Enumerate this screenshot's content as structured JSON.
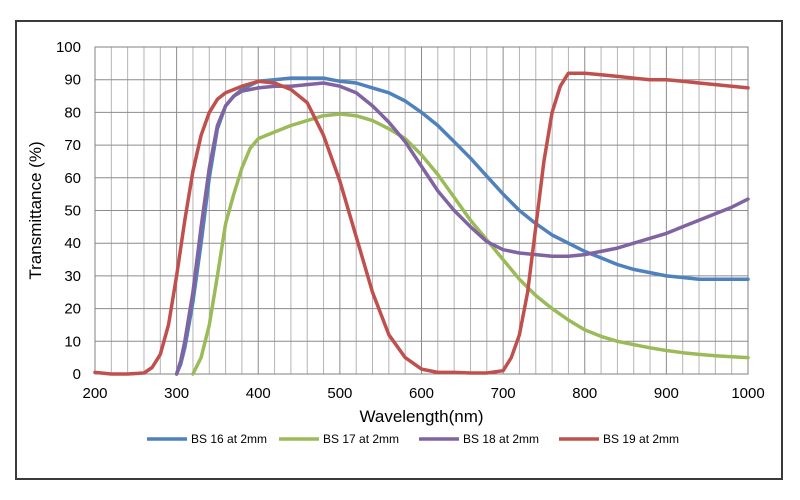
{
  "chart_data": {
    "type": "line",
    "title": "",
    "xlabel": "Wavelength(nm)",
    "ylabel": "Transmittance (%)",
    "xlim": [
      200,
      1000
    ],
    "ylim": [
      0,
      100
    ],
    "x_ticks": [
      200,
      300,
      400,
      500,
      600,
      700,
      800,
      900,
      1000
    ],
    "y_ticks": [
      0,
      10,
      20,
      30,
      40,
      50,
      60,
      70,
      80,
      90,
      100
    ],
    "x_minor_step": 20,
    "y_minor_step": 10,
    "grid": true,
    "legend_position": "bottom",
    "series": [
      {
        "name": "BS 16 at 2mm",
        "color": "#4F81BD",
        "points": [
          [
            300,
            0
          ],
          [
            305,
            3
          ],
          [
            310,
            8
          ],
          [
            315,
            15
          ],
          [
            320,
            22
          ],
          [
            330,
            40
          ],
          [
            340,
            60
          ],
          [
            350,
            75
          ],
          [
            360,
            82
          ],
          [
            370,
            85
          ],
          [
            380,
            87
          ],
          [
            400,
            89.5
          ],
          [
            420,
            90
          ],
          [
            440,
            90.5
          ],
          [
            460,
            90.5
          ],
          [
            480,
            90.5
          ],
          [
            500,
            89.5
          ],
          [
            520,
            89
          ],
          [
            540,
            87.5
          ],
          [
            560,
            86
          ],
          [
            580,
            83.5
          ],
          [
            600,
            80
          ],
          [
            620,
            76
          ],
          [
            640,
            71
          ],
          [
            660,
            66
          ],
          [
            680,
            60.5
          ],
          [
            700,
            55
          ],
          [
            720,
            50
          ],
          [
            740,
            46
          ],
          [
            760,
            42.5
          ],
          [
            780,
            40
          ],
          [
            800,
            37.5
          ],
          [
            820,
            35.5
          ],
          [
            840,
            33.5
          ],
          [
            860,
            32
          ],
          [
            880,
            31
          ],
          [
            900,
            30
          ],
          [
            920,
            29.5
          ],
          [
            940,
            29
          ],
          [
            960,
            29
          ],
          [
            980,
            29
          ],
          [
            1000,
            29
          ]
        ]
      },
      {
        "name": "BS 17 at 2mm",
        "color": "#9BBB59",
        "points": [
          [
            320,
            0
          ],
          [
            330,
            5
          ],
          [
            340,
            15
          ],
          [
            350,
            30
          ],
          [
            360,
            46
          ],
          [
            370,
            55
          ],
          [
            380,
            63
          ],
          [
            390,
            69
          ],
          [
            400,
            72
          ],
          [
            420,
            74
          ],
          [
            440,
            76
          ],
          [
            460,
            77.5
          ],
          [
            480,
            79
          ],
          [
            500,
            79.5
          ],
          [
            520,
            79
          ],
          [
            540,
            77.5
          ],
          [
            560,
            75
          ],
          [
            580,
            72
          ],
          [
            600,
            67
          ],
          [
            620,
            61
          ],
          [
            640,
            54
          ],
          [
            660,
            47
          ],
          [
            680,
            41
          ],
          [
            700,
            35
          ],
          [
            720,
            29
          ],
          [
            740,
            24
          ],
          [
            760,
            20
          ],
          [
            780,
            16.5
          ],
          [
            800,
            13.5
          ],
          [
            820,
            11.5
          ],
          [
            840,
            10
          ],
          [
            860,
            9
          ],
          [
            880,
            8
          ],
          [
            900,
            7.2
          ],
          [
            920,
            6.5
          ],
          [
            940,
            6
          ],
          [
            960,
            5.6
          ],
          [
            980,
            5.3
          ],
          [
            1000,
            5
          ]
        ]
      },
      {
        "name": "BS 18 at 2mm",
        "color": "#8064A2",
        "points": [
          [
            300,
            0
          ],
          [
            305,
            4
          ],
          [
            310,
            10
          ],
          [
            320,
            25
          ],
          [
            330,
            45
          ],
          [
            340,
            63
          ],
          [
            350,
            76
          ],
          [
            360,
            82
          ],
          [
            370,
            85
          ],
          [
            380,
            86.5
          ],
          [
            400,
            87.5
          ],
          [
            420,
            88
          ],
          [
            440,
            88
          ],
          [
            460,
            88.5
          ],
          [
            480,
            89
          ],
          [
            500,
            88
          ],
          [
            520,
            86
          ],
          [
            540,
            82
          ],
          [
            560,
            77
          ],
          [
            580,
            71
          ],
          [
            600,
            63.5
          ],
          [
            620,
            56
          ],
          [
            640,
            50
          ],
          [
            660,
            45
          ],
          [
            680,
            40.5
          ],
          [
            700,
            38
          ],
          [
            720,
            37
          ],
          [
            740,
            36.5
          ],
          [
            760,
            36
          ],
          [
            780,
            36
          ],
          [
            800,
            36.5
          ],
          [
            820,
            37.5
          ],
          [
            840,
            38.5
          ],
          [
            860,
            40
          ],
          [
            880,
            41.5
          ],
          [
            900,
            43
          ],
          [
            920,
            45
          ],
          [
            940,
            47
          ],
          [
            960,
            49
          ],
          [
            980,
            51
          ],
          [
            1000,
            53.5
          ]
        ]
      },
      {
        "name": "BS 19 at 2mm",
        "color": "#C0504D",
        "points": [
          [
            200,
            0.5
          ],
          [
            220,
            0
          ],
          [
            240,
            0
          ],
          [
            260,
            0.3
          ],
          [
            270,
            2
          ],
          [
            280,
            6
          ],
          [
            290,
            15
          ],
          [
            300,
            30
          ],
          [
            310,
            47
          ],
          [
            320,
            62
          ],
          [
            330,
            73
          ],
          [
            340,
            80
          ],
          [
            350,
            84
          ],
          [
            360,
            86
          ],
          [
            370,
            87
          ],
          [
            380,
            88
          ],
          [
            400,
            89.5
          ],
          [
            420,
            89
          ],
          [
            440,
            87
          ],
          [
            460,
            83
          ],
          [
            480,
            73
          ],
          [
            500,
            59
          ],
          [
            520,
            42
          ],
          [
            540,
            25
          ],
          [
            560,
            12
          ],
          [
            580,
            5
          ],
          [
            600,
            1.5
          ],
          [
            620,
            0.5
          ],
          [
            640,
            0.5
          ],
          [
            660,
            0.3
          ],
          [
            680,
            0.3
          ],
          [
            700,
            1
          ],
          [
            710,
            5
          ],
          [
            720,
            12
          ],
          [
            730,
            25
          ],
          [
            740,
            45
          ],
          [
            750,
            65
          ],
          [
            760,
            80
          ],
          [
            770,
            88
          ],
          [
            780,
            92
          ],
          [
            800,
            92
          ],
          [
            820,
            91.5
          ],
          [
            840,
            91
          ],
          [
            860,
            90.5
          ],
          [
            880,
            90
          ],
          [
            900,
            90
          ],
          [
            920,
            89.5
          ],
          [
            940,
            89
          ],
          [
            960,
            88.5
          ],
          [
            980,
            88
          ],
          [
            1000,
            87.5
          ]
        ]
      }
    ]
  }
}
